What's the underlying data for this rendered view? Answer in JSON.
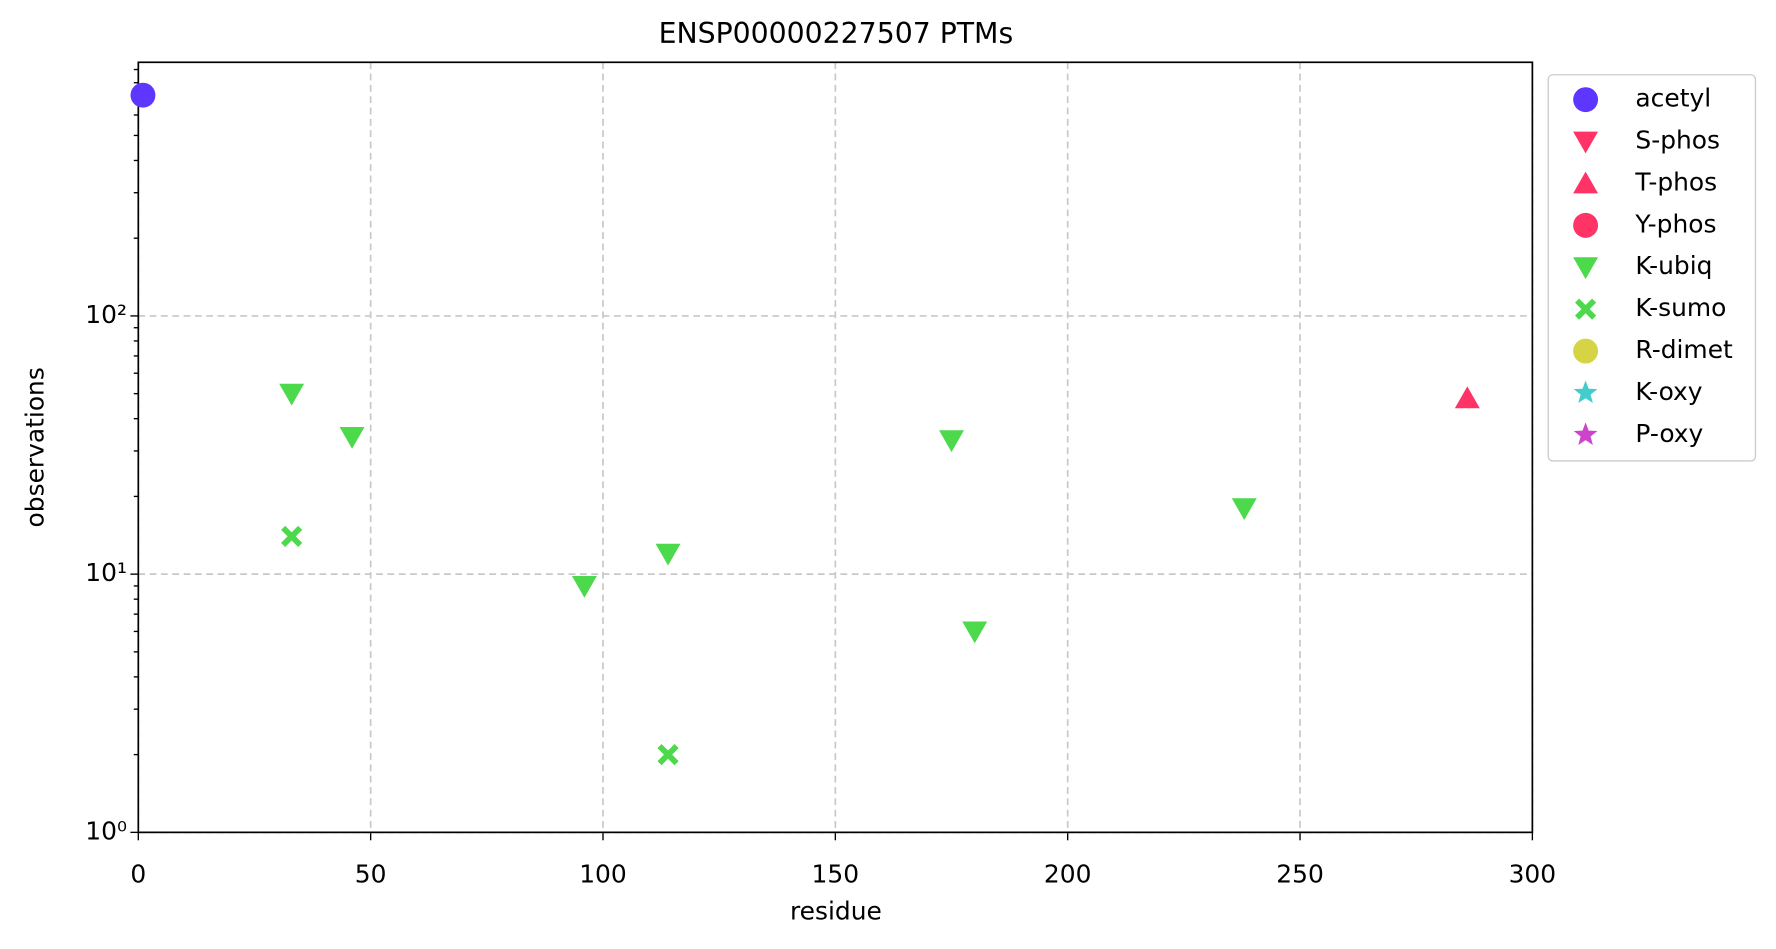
{
  "chart_data": {
    "type": "scatter",
    "title": "ENSP00000227507 PTMs",
    "x_label": "residue",
    "y_label": "observations",
    "xlim": [
      0,
      300
    ],
    "xticks": [
      0,
      50,
      100,
      150,
      200,
      250,
      300
    ],
    "ylim": [
      1,
      960
    ],
    "log_y": true,
    "yticks": [
      {
        "value": 1,
        "label": "10⁰"
      },
      {
        "value": 10,
        "label": "10¹"
      },
      {
        "value": 100,
        "label": "10²"
      }
    ],
    "yminorticks": [
      2,
      3,
      4,
      5,
      6,
      7,
      8,
      9,
      20,
      30,
      40,
      50,
      60,
      70,
      80,
      90,
      200,
      300,
      400,
      500,
      600,
      700,
      800,
      900
    ],
    "grid": true,
    "legend": "outside right",
    "series": [
      {
        "name": "acetyl",
        "color": "#5d36ff",
        "marker": "circle",
        "x": [
          1
        ],
        "values": [
          716
        ]
      },
      {
        "name": "S-phos",
        "color": "#ff3366",
        "marker": "triangle-down",
        "x": [],
        "values": []
      },
      {
        "name": "T-phos",
        "color": "#ff3366",
        "marker": "triangle-up",
        "x": [
          286
        ],
        "values": [
          48
        ]
      },
      {
        "name": "Y-phos",
        "color": "#ff3366",
        "marker": "circle",
        "x": [],
        "values": []
      },
      {
        "name": "K-ubiq",
        "color": "#4cd94c",
        "marker": "triangle-down",
        "x": [
          33,
          46,
          96,
          114,
          175,
          180,
          238
        ],
        "values": [
          50,
          34,
          9,
          12,
          33,
          6,
          18
        ]
      },
      {
        "name": "K-sumo",
        "color": "#4cd94c",
        "marker": "x",
        "x": [
          33,
          114
        ],
        "values": [
          14,
          2
        ]
      },
      {
        "name": "R-dimet",
        "color": "#d4d444",
        "marker": "circle",
        "x": [],
        "values": []
      },
      {
        "name": "K-oxy",
        "color": "#44cccc",
        "marker": "star",
        "x": [],
        "values": []
      },
      {
        "name": "P-oxy",
        "color": "#cc44cc",
        "marker": "star",
        "x": [],
        "values": []
      }
    ]
  }
}
